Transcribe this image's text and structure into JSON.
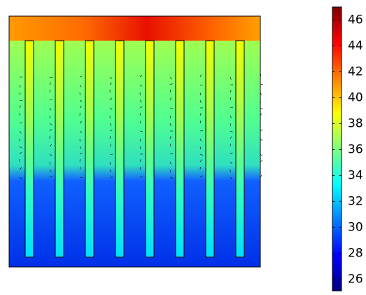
{
  "chart_data": {
    "type": "colormap",
    "colormap": "jet",
    "clim": [
      25.1,
      47
    ],
    "cticks": [
      26,
      28,
      30,
      32,
      34,
      36,
      38,
      40,
      42,
      44,
      46
    ]
  }
}
